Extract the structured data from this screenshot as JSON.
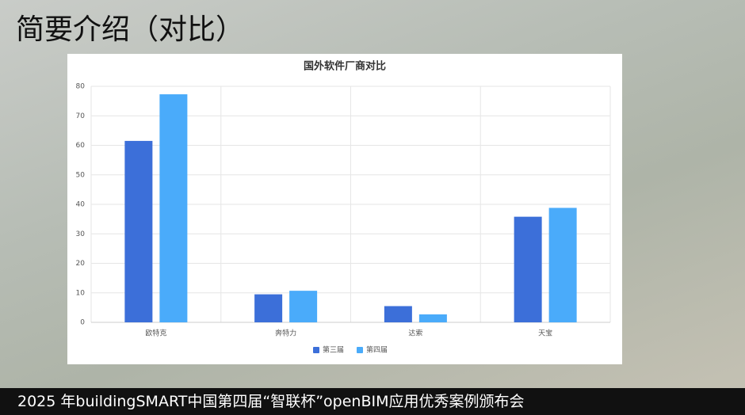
{
  "slide_title": "简要介绍（对比）",
  "footer": "2025 年buildingSMART中国第四届“智联杯”openBIM应用优秀案例颁布会",
  "chart_data": {
    "type": "bar",
    "title": "国外软件厂商对比",
    "categories": [
      "欧特克",
      "奔特力",
      "达索",
      "天宝"
    ],
    "series": [
      {
        "name": "第三届",
        "color": "#3c6fd9",
        "values": [
          61.5,
          9.5,
          5.5,
          35.8
        ]
      },
      {
        "name": "第四届",
        "color": "#4aabfa",
        "values": [
          77.3,
          10.7,
          2.7,
          38.8
        ]
      }
    ],
    "ylim": [
      0,
      80
    ],
    "yticks": [
      0,
      10,
      20,
      30,
      40,
      50,
      60,
      70,
      80
    ],
    "grid": true,
    "legend": "bottom"
  }
}
